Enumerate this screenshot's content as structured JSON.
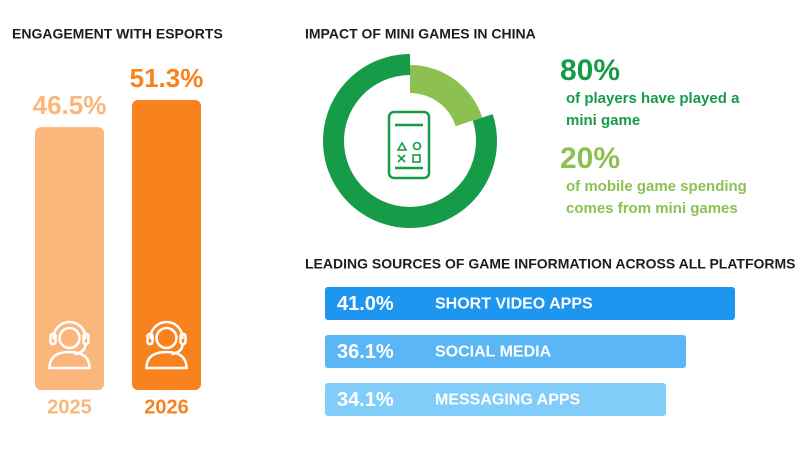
{
  "chart_data": [
    {
      "type": "bar",
      "title": "ENGAGEMENT WITH ESPORTS",
      "categories": [
        "2025",
        "2026"
      ],
      "values": [
        46.5,
        51.3
      ],
      "value_labels": [
        "46.5%",
        "51.3%"
      ],
      "colors": [
        "#fbb67c",
        "#f7821e"
      ]
    },
    {
      "type": "donut",
      "title": "IMPACT OF MINI GAMES IN CHINA",
      "categories": [
        "of players have played a mini game",
        "of mobile game spending comes from mini games"
      ],
      "values": [
        80,
        20
      ],
      "value_labels": [
        "80%",
        "20%"
      ],
      "colors": [
        "#169c48",
        "#8cc152"
      ]
    },
    {
      "type": "hbar",
      "title": "LEADING SOURCES OF GAME INFORMATION ACROSS ALL PLATFORMS",
      "categories": [
        "SHORT VIDEO APPS",
        "SOCIAL MEDIA",
        "MESSAGING APPS"
      ],
      "values": [
        41.0,
        36.1,
        34.1
      ],
      "value_labels": [
        "41.0%",
        "36.1%",
        "34.1%"
      ],
      "colors": [
        "#1e96f0",
        "#5ab6f4",
        "#80cdf9"
      ]
    }
  ]
}
